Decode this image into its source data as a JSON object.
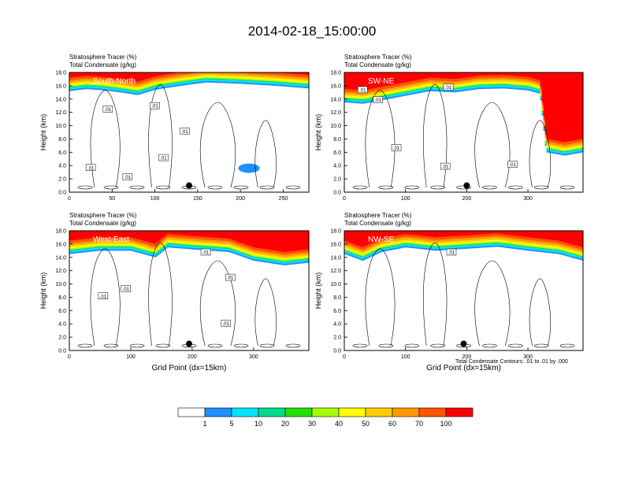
{
  "title": "2014-02-18_15:00:00",
  "footnote": "Total Condensate Contours: .01 to .01 by .000",
  "colors": {
    "levels": [
      "#ffffff",
      "#1e90ff",
      "#00e5ff",
      "#00dd88",
      "#22e000",
      "#a8ff00",
      "#ffff00",
      "#ffcc00",
      "#ff9900",
      "#ff5500",
      "#ff0000"
    ],
    "contour": "#000000",
    "marker": "#000000"
  },
  "chart_data": [
    {
      "type": "heatmap",
      "name": "South-North",
      "label": "South-North",
      "title_line1": "Stratosphere Tracer   (%)",
      "title_line2": "Total Condensate   (g/kg)",
      "ylabel": "Height (km)",
      "xlabel": "",
      "xlim": [
        0,
        280
      ],
      "ylim": [
        0,
        18
      ],
      "xticks": [
        0,
        50,
        100,
        150,
        200,
        250
      ],
      "yticks": [
        0.0,
        2.0,
        4.0,
        6.0,
        8.0,
        10.0,
        12.0,
        14.0,
        16.0,
        18.0
      ],
      "marker_point": [
        140,
        1.0
      ],
      "tracer_base_km": [
        [
          0,
          15.2
        ],
        [
          20,
          15.5
        ],
        [
          40,
          15.3
        ],
        [
          60,
          15.0
        ],
        [
          80,
          14.6
        ],
        [
          100,
          15.4
        ],
        [
          130,
          16.0
        ],
        [
          160,
          16.5
        ],
        [
          200,
          16.3
        ],
        [
          240,
          16.0
        ],
        [
          280,
          15.6
        ]
      ],
      "extra_blobs": [
        [
          210,
          3.6,
          25,
          0.7
        ]
      ],
      "contour_labels": [
        [
          45,
          12.5,
          ".01"
        ],
        [
          100,
          13.0,
          ".01"
        ],
        [
          135,
          9.2,
          ".01"
        ],
        [
          110,
          5.2,
          ".01"
        ],
        [
          25,
          3.7,
          ".01"
        ],
        [
          68,
          2.3,
          ".01"
        ]
      ]
    },
    {
      "type": "heatmap",
      "name": "SW-NE",
      "label": "SW-NE",
      "title_line1": "Stratosphere Tracer   (%)",
      "title_line2": "Total Condensate   (g/kg)",
      "ylabel": "Height (km)",
      "xlabel": "",
      "xlim": [
        0,
        390
      ],
      "ylim": [
        0,
        18
      ],
      "xticks": [
        0,
        100,
        200,
        300
      ],
      "yticks": [
        0.0,
        2.0,
        4.0,
        6.0,
        8.0,
        10.0,
        12.0,
        14.0,
        16.0,
        18.0
      ],
      "marker_point": [
        200,
        1.0
      ],
      "tracer_base_km": [
        [
          0,
          13.5
        ],
        [
          30,
          13.3
        ],
        [
          60,
          13.8
        ],
        [
          100,
          14.5
        ],
        [
          140,
          15.2
        ],
        [
          180,
          15.0
        ],
        [
          220,
          15.5
        ],
        [
          260,
          15.6
        ],
        [
          300,
          15.3
        ],
        [
          320,
          14.8
        ],
        [
          330,
          6.0
        ],
        [
          360,
          5.5
        ],
        [
          390,
          6.0
        ]
      ],
      "extra_blobs": [],
      "contour_labels": [
        [
          30,
          15.4,
          ".01"
        ],
        [
          55,
          13.9,
          ".01"
        ],
        [
          170,
          15.8,
          ".01"
        ],
        [
          85,
          6.7,
          ".01"
        ],
        [
          165,
          3.9,
          ".01"
        ],
        [
          275,
          4.2,
          ".01"
        ]
      ]
    },
    {
      "type": "heatmap",
      "name": "West-East",
      "label": "West-East",
      "title_line1": "Stratosphere Tracer   (%)",
      "title_line2": "Total Condensate   (g/kg)",
      "ylabel": "Height (km)",
      "xlabel": "Grid Point (dx=15km)",
      "xlim": [
        0,
        390
      ],
      "ylim": [
        0,
        18
      ],
      "xticks": [
        0,
        100,
        200,
        300
      ],
      "yticks": [
        0.0,
        2.0,
        4.0,
        6.0,
        8.0,
        10.0,
        12.0,
        14.0,
        16.0,
        18.0
      ],
      "marker_point": [
        195,
        1.0
      ],
      "tracer_base_km": [
        [
          0,
          14.5
        ],
        [
          50,
          15.0
        ],
        [
          100,
          15.0
        ],
        [
          140,
          14.0
        ],
        [
          160,
          15.5
        ],
        [
          200,
          15.2
        ],
        [
          260,
          14.8
        ],
        [
          300,
          13.5
        ],
        [
          350,
          12.8
        ],
        [
          390,
          13.2
        ]
      ],
      "extra_blobs": [],
      "contour_labels": [
        [
          222,
          14.8,
          ".01"
        ],
        [
          262,
          11.0,
          ".01"
        ],
        [
          55,
          8.2,
          ".01"
        ],
        [
          92,
          9.3,
          ".01"
        ],
        [
          255,
          4.1,
          ".01"
        ]
      ]
    },
    {
      "type": "heatmap",
      "name": "NW-SE",
      "label": "NW-SE",
      "title_line1": "Stratosphere Tracer   (%)",
      "title_line2": "Total Condensate   (g/kg)",
      "ylabel": "Height (km)",
      "xlabel": "Grid Point (dx=15km)",
      "xlim": [
        0,
        390
      ],
      "ylim": [
        0,
        18
      ],
      "xticks": [
        0,
        100,
        200,
        300
      ],
      "yticks": [
        0.0,
        2.0,
        4.0,
        6.0,
        8.0,
        10.0,
        12.0,
        14.0,
        16.0,
        18.0
      ],
      "marker_point": [
        195,
        1.0
      ],
      "tracer_base_km": [
        [
          0,
          14.5
        ],
        [
          30,
          13.5
        ],
        [
          60,
          14.8
        ],
        [
          100,
          15.5
        ],
        [
          150,
          15.0
        ],
        [
          200,
          15.3
        ],
        [
          250,
          15.6
        ],
        [
          300,
          15.0
        ],
        [
          350,
          14.5
        ],
        [
          390,
          13.5
        ]
      ],
      "extra_blobs": [],
      "contour_labels": [
        [
          175,
          14.8,
          ".01"
        ]
      ]
    }
  ],
  "colorbar": {
    "labels": [
      "1",
      "5",
      "10",
      "20",
      "30",
      "40",
      "50",
      "60",
      "70",
      "100"
    ]
  }
}
